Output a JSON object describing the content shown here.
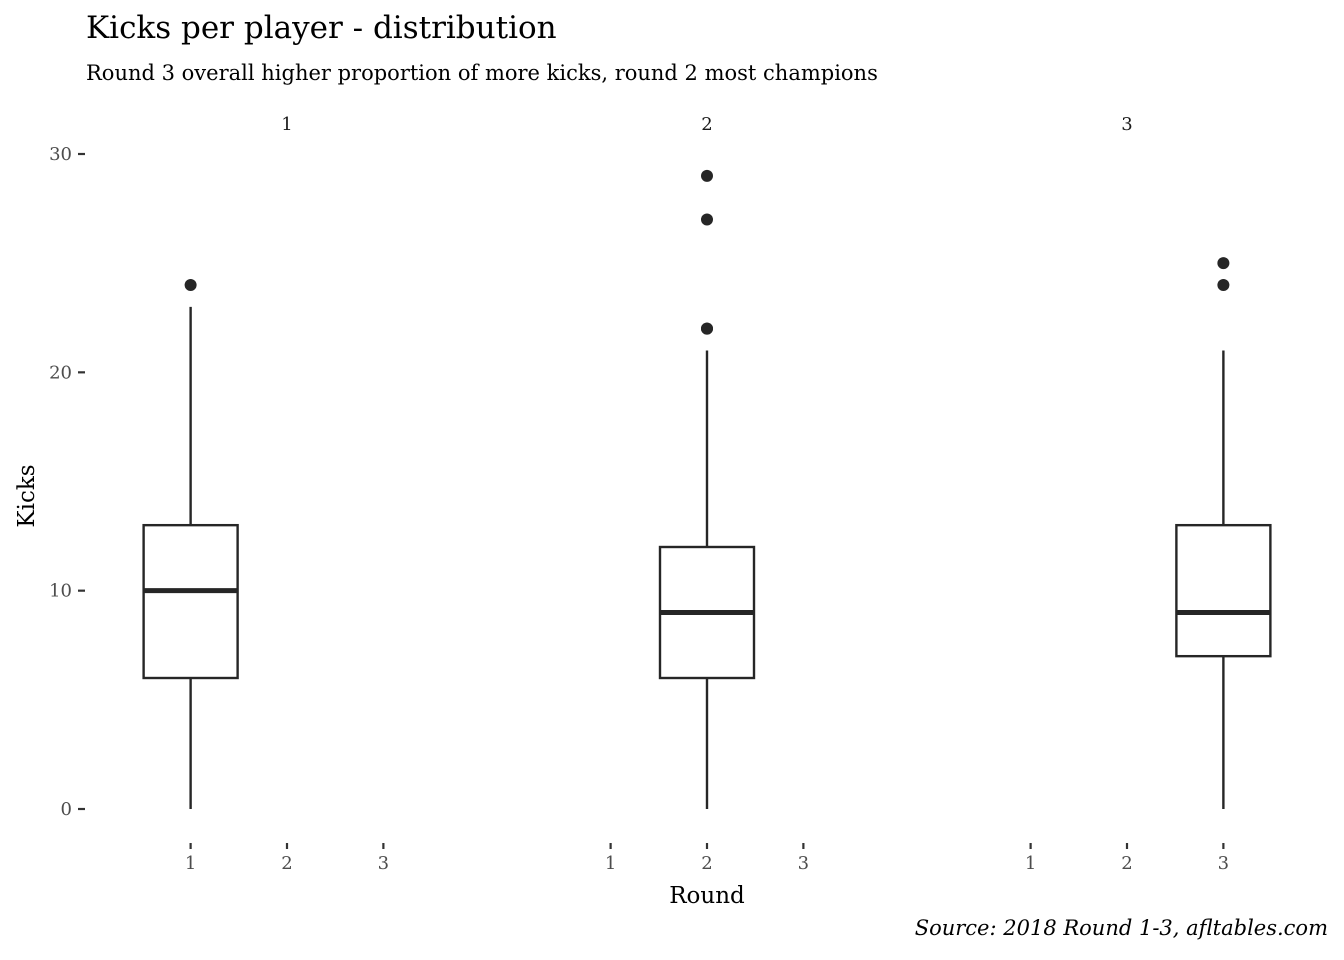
{
  "chart_data": {
    "type": "boxplot",
    "title": "Kicks per player - distribution",
    "subtitle": "Round 3 overall higher proportion of more kicks, round 2 most champions",
    "caption": "Source: 2018 Round 1-3, afltables.com",
    "xlabel": "Round",
    "ylabel": "Kicks",
    "ylim": [
      0,
      30
    ],
    "yticks": [
      0,
      10,
      20,
      30
    ],
    "facets": [
      "1",
      "2",
      "3"
    ],
    "categories": [
      "1",
      "2",
      "3"
    ],
    "grid": false,
    "legend": "none",
    "colors": {
      "ink": "#262626",
      "tick_text": "#4d4d4d"
    },
    "boxes": [
      {
        "facet": "1",
        "round": "1",
        "lower_whisker": 0,
        "q1": 6,
        "median": 10,
        "q3": 13,
        "upper_whisker": 23,
        "outliers": [
          24
        ]
      },
      {
        "facet": "2",
        "round": "2",
        "lower_whisker": 0,
        "q1": 6,
        "median": 9,
        "q3": 12,
        "upper_whisker": 21,
        "outliers": [
          22,
          22,
          27,
          29
        ]
      },
      {
        "facet": "3",
        "round": "3",
        "lower_whisker": 0,
        "q1": 7,
        "median": 9,
        "q3": 13,
        "upper_whisker": 21,
        "outliers": [
          24,
          25
        ]
      }
    ]
  }
}
